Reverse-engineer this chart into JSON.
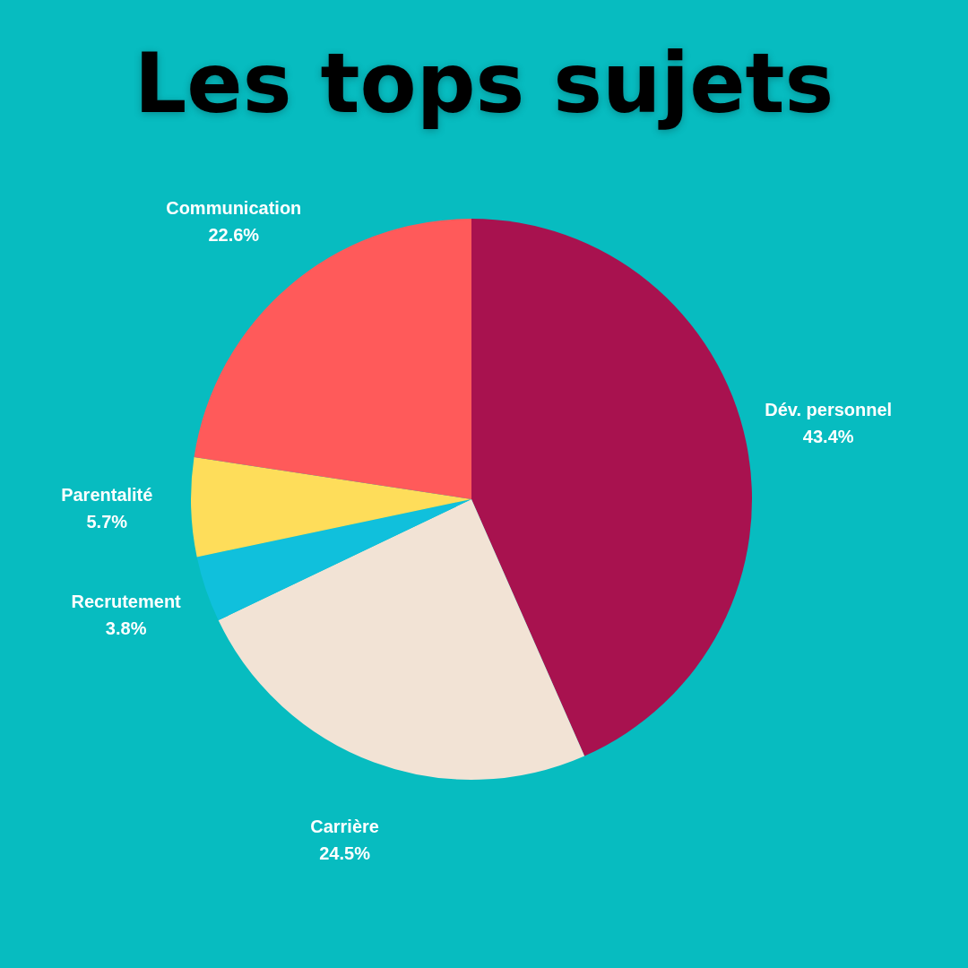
{
  "chart_data": {
    "type": "pie",
    "title": "Les tops sujets",
    "categories": [
      "Dév. personnel",
      "Carrière",
      "Recrutement",
      "Parentalité",
      "Communication"
    ],
    "values": [
      43.4,
      24.5,
      3.8,
      5.7,
      22.6
    ],
    "colors": [
      "#a8124f",
      "#f2e3d5",
      "#10c0dc",
      "#fedd5a",
      "#ff5a5a"
    ],
    "value_labels": [
      "43.4%",
      "24.5%",
      "3.8%",
      "5.7%",
      "22.6%"
    ]
  }
}
